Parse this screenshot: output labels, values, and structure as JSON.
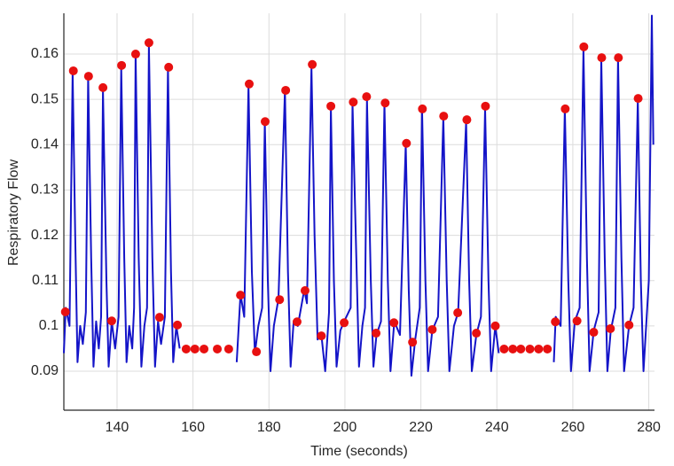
{
  "chart_data": {
    "type": "line",
    "xlabel": "Time (seconds)",
    "ylabel": "Respiratory Flow",
    "xlim": [
      126,
      281.5
    ],
    "ylim": [
      0.0814,
      0.169
    ],
    "xticks": [
      140,
      160,
      180,
      200,
      220,
      240,
      260,
      280
    ],
    "yticks": [
      0.09,
      0.1,
      0.11,
      0.12,
      0.13,
      0.14,
      0.15,
      0.16
    ],
    "grid": true,
    "series": [
      {
        "type": "line",
        "color": "#1414c8",
        "x": [
          126,
          126.5,
          127.5,
          128.3,
          129.0,
          129.6,
          130.3,
          131.0,
          131.8,
          132.4,
          133.2,
          133.8,
          134.5,
          135.2,
          135.8,
          136.3,
          137.2,
          137.8,
          138.6,
          139.5,
          140.4,
          141.1,
          141.9,
          142.5,
          143.2,
          144.0,
          144.5,
          144.9,
          145.7,
          146.4,
          147.2,
          147.9,
          148.4,
          149.3,
          150.0,
          150.8,
          151.6,
          152.6,
          153.4,
          154.2,
          154.8,
          155.6,
          156.5,
          null,
          171.5,
          172.5,
          173.5,
          174.6,
          175.5,
          176.3,
          177.2,
          178.2,
          178.9,
          179.7,
          180.4,
          181.3,
          182.5,
          184.2,
          185.0,
          185.7,
          186.5,
          187.6,
          189.3,
          190.0,
          191.2,
          192.0,
          192.8,
          193.8,
          194.8,
          195.8,
          196.3,
          197.1,
          197.8,
          198.8,
          199.8,
          201.5,
          202.0,
          203.0,
          203.7,
          204.6,
          205.3,
          205.8,
          206.8,
          207.5,
          208.3,
          209.5,
          210.4,
          211.3,
          212.0,
          213.0,
          214.5,
          216.0,
          216.8,
          217.5,
          218.5,
          219.7,
          220.3,
          221.2,
          221.9,
          223.0,
          224.5,
          225.9,
          226.8,
          227.5,
          228.7,
          229.8,
          231.9,
          232.7,
          233.4,
          234.6,
          235.8,
          236.9,
          237.8,
          238.5,
          239.6,
          240.5,
          null,
          255.0,
          255.5,
          256.8,
          257.9,
          258.8,
          259.5,
          260.5,
          261.8,
          262.8,
          263.7,
          264.4,
          265.5,
          266.8,
          267.5,
          268.4,
          269.1,
          270.0,
          271.2,
          271.9,
          272.8,
          273.5,
          274.8,
          276.0,
          277.1,
          277.9,
          278.6,
          279.3,
          280.0,
          280.8,
          281.2
        ],
        "values": [
          0.094,
          0.104,
          0.1,
          0.156,
          0.12,
          0.092,
          0.1,
          0.096,
          0.103,
          0.155,
          0.115,
          0.091,
          0.101,
          0.095,
          0.102,
          0.152,
          0.11,
          0.091,
          0.101,
          0.095,
          0.102,
          0.157,
          0.115,
          0.092,
          0.1,
          0.095,
          0.104,
          0.16,
          0.115,
          0.091,
          0.1,
          0.104,
          0.162,
          0.115,
          0.091,
          0.101,
          0.096,
          0.102,
          0.157,
          0.112,
          0.092,
          0.1,
          0.095,
          null,
          0.092,
          0.107,
          0.102,
          0.153,
          0.112,
          0.094,
          0.1,
          0.104,
          0.145,
          0.11,
          0.09,
          0.1,
          0.106,
          0.152,
          0.112,
          0.091,
          0.101,
          0.1,
          0.108,
          0.105,
          0.157,
          0.12,
          0.097,
          0.098,
          0.09,
          0.103,
          0.148,
          0.11,
          0.091,
          0.099,
          0.101,
          0.104,
          0.149,
          0.115,
          0.091,
          0.1,
          0.104,
          0.15,
          0.11,
          0.091,
          0.098,
          0.101,
          0.149,
          0.11,
          0.09,
          0.101,
          0.098,
          0.14,
          0.108,
          0.089,
          0.097,
          0.104,
          0.148,
          0.11,
          0.09,
          0.099,
          0.102,
          0.146,
          0.11,
          0.09,
          0.1,
          0.103,
          0.145,
          0.11,
          0.09,
          0.098,
          0.102,
          0.148,
          0.11,
          0.09,
          0.1,
          0.094,
          null,
          0.092,
          0.102,
          0.1,
          0.148,
          0.11,
          0.09,
          0.101,
          0.104,
          0.161,
          0.115,
          0.09,
          0.099,
          0.103,
          0.159,
          0.115,
          0.09,
          0.099,
          0.104,
          0.159,
          0.115,
          0.09,
          0.1,
          0.104,
          0.15,
          0.11,
          0.09,
          0.1,
          0.11,
          0.1685,
          0.14
        ]
      },
      {
        "type": "scatter",
        "color": "#e81010",
        "x": [
          126.4,
          128.5,
          132.5,
          136.3,
          138.6,
          141.2,
          144.9,
          148.4,
          151.2,
          153.6,
          155.9,
          158.2,
          160.5,
          162.9,
          166.4,
          169.4,
          172.5,
          174.8,
          176.7,
          179.0,
          182.8,
          184.4,
          187.4,
          189.5,
          191.4,
          193.8,
          196.3,
          199.8,
          202.2,
          205.7,
          208.2,
          210.6,
          212.9,
          216.2,
          217.8,
          220.4,
          223.0,
          226.0,
          229.7,
          232.1,
          234.6,
          237.0,
          239.6,
          241.9,
          244.2,
          246.3,
          248.7,
          251.0,
          253.3,
          255.4,
          258.0,
          261.1,
          262.9,
          265.5,
          267.6,
          269.9,
          272.0,
          274.8,
          277.2
        ],
        "values": [
          0.1031,
          0.1563,
          0.1551,
          0.1526,
          0.1011,
          0.1575,
          0.16,
          0.1625,
          0.1019,
          0.1571,
          0.1002,
          0.0949,
          0.0949,
          0.0949,
          0.0949,
          0.0949,
          0.1068,
          0.1534,
          0.0943,
          0.1451,
          0.1058,
          0.152,
          0.1009,
          0.1078,
          0.1577,
          0.0978,
          0.1485,
          0.1007,
          0.1494,
          0.1506,
          0.0984,
          0.1492,
          0.1007,
          0.1403,
          0.0964,
          0.1479,
          0.0992,
          0.1463,
          0.1029,
          0.1455,
          0.0984,
          0.1485,
          0.1,
          0.0949,
          0.0949,
          0.0949,
          0.0949,
          0.0949,
          0.0949,
          0.1009,
          0.1479,
          0.1011,
          0.1616,
          0.0986,
          0.1592,
          0.0994,
          0.1592,
          0.1002,
          0.1502
        ]
      }
    ]
  }
}
